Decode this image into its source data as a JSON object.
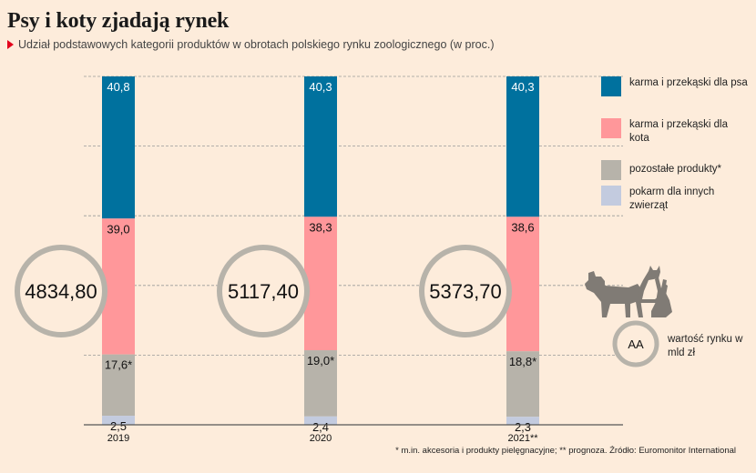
{
  "title": "Psy i koty zjadają rynek",
  "subtitle": "Udział podstawowych kategorii produktów w obrotach polskiego rynku zoologicznego (w proc.)",
  "chart_data": {
    "type": "bar",
    "stacked": true,
    "categories": [
      "2019",
      "2020",
      "2021**"
    ],
    "series": [
      {
        "name": "karma i przekąski dla psa",
        "color": "#00719e",
        "values": [
          40.8,
          40.3,
          40.3
        ],
        "labels": [
          "40,8",
          "40,3",
          "40,3"
        ]
      },
      {
        "name": "karma i przekąski dla kota",
        "color": "#ff979a",
        "values": [
          39.0,
          38.3,
          38.6
        ],
        "labels": [
          "39,0",
          "38,3",
          "38,6"
        ]
      },
      {
        "name": "pozostałe produkty*",
        "color": "#b7b3aa",
        "values": [
          17.6,
          19.0,
          18.8
        ],
        "labels": [
          "17,6*",
          "19,0*",
          "18,8*"
        ]
      },
      {
        "name": "pokarm dla innych zwierząt",
        "color": "#c3cbdf",
        "values": [
          2.5,
          2.4,
          2.3
        ],
        "labels": [
          "2,5",
          "2,4",
          "2,3"
        ]
      }
    ],
    "market_value": {
      "label": "wartość rynku w mld zł",
      "values": [
        4834.8,
        5117.4,
        5373.7
      ],
      "labels": [
        "4834,80",
        "5117,40",
        "5373,70"
      ],
      "legend_symbol": "AA"
    },
    "gridlines": true,
    "legend_position": "right"
  },
  "footnote": "* m.in. akcesoria i produkty pielęgnacyjne; ** prognoza. Źródło: Euromonitor International",
  "icons": [
    "dog-icon",
    "cat-icon",
    "rabbit-icon"
  ]
}
